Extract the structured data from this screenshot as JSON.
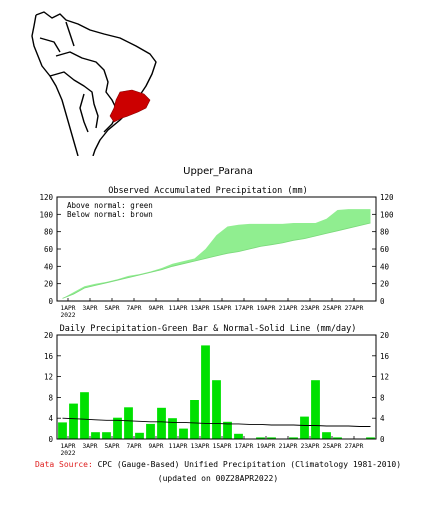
{
  "map": {
    "landmass_color": "#ffffff",
    "outline_color": "#000000",
    "region_color": "#cc0000"
  },
  "region_title": "Upper_Parana",
  "chart_data": [
    {
      "type": "area",
      "title": "Observed Accumulated Precipitation (mm)",
      "legend": [
        "Above normal: green",
        "Below normal: brown"
      ],
      "legend_position": "top-left",
      "ylim": [
        0,
        120
      ],
      "yticks": [
        0,
        20,
        40,
        60,
        80,
        100,
        120
      ],
      "xlim": [
        0,
        29
      ],
      "x_tick_labels": [
        "1APR",
        "3APR",
        "5APR",
        "7APR",
        "9APR",
        "11APR",
        "13APR",
        "15APR",
        "17APR",
        "19APR",
        "21APR",
        "23APR",
        "25APR",
        "27APR"
      ],
      "year_label": "2022",
      "fill_color": "#90ee90",
      "series": [
        {
          "values": [
            3,
            10,
            17,
            20,
            22,
            25,
            29,
            31,
            34,
            38,
            43,
            46,
            49,
            60,
            76,
            86,
            88,
            89,
            89,
            89,
            89,
            90,
            90,
            90,
            95,
            105,
            106,
            106,
            106
          ]
        },
        {
          "values": [
            3,
            8,
            15,
            18,
            21,
            24,
            27,
            30,
            33,
            36,
            40,
            43,
            46,
            49,
            52,
            55,
            57,
            60,
            63,
            65,
            67,
            70,
            72,
            75,
            78,
            81,
            84,
            87,
            90
          ]
        }
      ]
    },
    {
      "type": "bar",
      "title": "Daily Precipitation-Green Bar & Normal-Solid Line (mm/day)",
      "ylim": [
        0,
        20
      ],
      "yticks": [
        0,
        4,
        8,
        12,
        16,
        20
      ],
      "xlim": [
        0,
        29
      ],
      "x_tick_labels": [
        "1APR",
        "3APR",
        "5APR",
        "7APR",
        "9APR",
        "11APR",
        "13APR",
        "15APR",
        "17APR",
        "19APR",
        "21APR",
        "23APR",
        "25APR",
        "27APR"
      ],
      "year_label": "2022",
      "bar_color": "#00e000",
      "values": [
        3.2,
        6.8,
        9.0,
        1.3,
        1.3,
        4.1,
        6.1,
        1.2,
        2.9,
        6.0,
        4.0,
        2.0,
        7.5,
        18.0,
        11.3,
        3.3,
        1.0,
        0.1,
        0.3,
        0.3,
        0.1,
        0.3,
        4.3,
        11.3,
        1.3,
        0.3,
        0.1,
        0.1,
        0.3
      ],
      "normal": [
        4.0,
        3.9,
        3.8,
        3.7,
        3.6,
        3.6,
        3.5,
        3.4,
        3.3,
        3.3,
        3.2,
        3.2,
        3.1,
        3.0,
        3.0,
        2.9,
        2.9,
        2.8,
        2.8,
        2.7,
        2.7,
        2.7,
        2.6,
        2.6,
        2.5,
        2.5,
        2.5,
        2.4,
        2.4
      ]
    }
  ],
  "footer": {
    "source_label": "Data Source:",
    "source_text": "CPC (Gauge-Based) Unified Precipitation (Climatology 1981-2010)",
    "updated": "(updated on 00Z28APR2022)"
  }
}
